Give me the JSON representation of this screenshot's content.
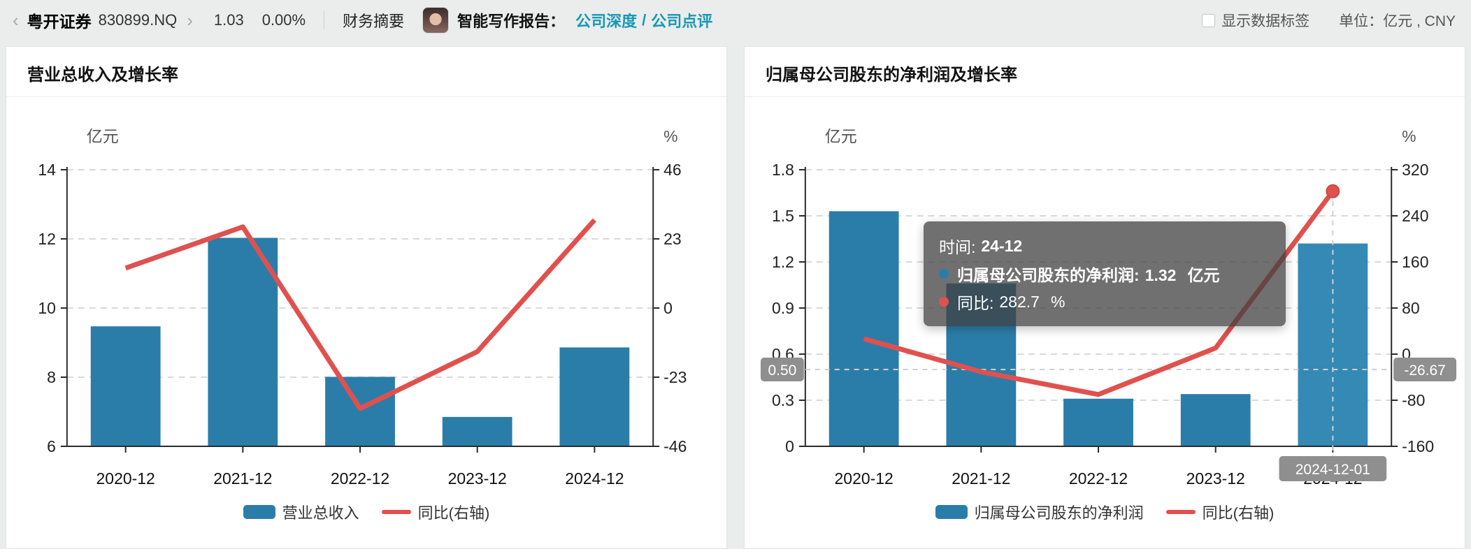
{
  "header": {
    "back_icon": "‹",
    "forward_icon": "›",
    "stock_name": "粤开证券",
    "stock_code": "830899.NQ",
    "price": "1.03",
    "change_percent": "0.00%",
    "tab_financial_summary": "财务摘要",
    "report_label": "智能写作报告：",
    "link_company_deep": "公司深度",
    "link_separator": "/",
    "link_company_comment": "公司点评",
    "show_data_labels": "显示数据标签",
    "unit_label": "单位：",
    "unit_value": "亿元 , CNY"
  },
  "colors": {
    "bar": "#2b7da9",
    "bar_emphasis": "#3489b5",
    "line": "#e0514e",
    "accent": "#1898b4",
    "badge": "#8f8f8f",
    "axis": "#2b2b2b",
    "grid": "#d9d9d9",
    "crosshair": "#d0d0d0",
    "tooltip_bg": "rgba(64,64,64,0.75)"
  },
  "chart_data": [
    {
      "type": "bar+line",
      "title": "营业总收入及增长率",
      "categories": [
        "2020-12",
        "2021-12",
        "2022-12",
        "2023-12",
        "2024-12"
      ],
      "series": [
        {
          "name": "营业总收入",
          "type": "bar",
          "axis": "left",
          "values": [
            9.47,
            12.03,
            8.01,
            6.85,
            8.86
          ]
        },
        {
          "name": "同比(右轴)",
          "type": "line",
          "axis": "right",
          "values": [
            13.3,
            27.0,
            -33.4,
            -14.5,
            29.3
          ]
        }
      ],
      "left_axis": {
        "unit": "亿元",
        "tick_labels": [
          "14",
          "12",
          "10",
          "8",
          "6"
        ],
        "min": 6,
        "max": 14
      },
      "right_axis": {
        "unit": "%",
        "tick_labels": [
          "46",
          "23",
          "0",
          "-23",
          "-46"
        ],
        "min": -46,
        "max": 46
      },
      "grid": true,
      "legend_position": "bottom"
    },
    {
      "type": "bar+line",
      "title": "归属母公司股东的净利润及增长率",
      "categories": [
        "2020-12",
        "2021-12",
        "2022-12",
        "2023-12",
        "2024-12"
      ],
      "series": [
        {
          "name": "归属母公司股东的净利润",
          "type": "bar",
          "axis": "left",
          "values": [
            1.53,
            1.06,
            0.31,
            0.34,
            1.32
          ]
        },
        {
          "name": "同比(右轴)",
          "type": "line",
          "axis": "right",
          "values": [
            26.7,
            -30.7,
            -70.1,
            10.6,
            282.7
          ]
        }
      ],
      "left_axis": {
        "unit": "亿元",
        "tick_labels": [
          "1.8",
          "1.5",
          "1.2",
          "0.9",
          "0.6",
          "0.3",
          "0"
        ],
        "min": 0,
        "max": 1.8
      },
      "right_axis": {
        "unit": "%",
        "tick_labels": [
          "320",
          "240",
          "160",
          "80",
          "0",
          "-80",
          "-160"
        ],
        "min": -160,
        "max": 320
      },
      "grid": true,
      "legend_position": "bottom",
      "emphasis_index": 4,
      "highlight_point": {
        "category_index": 4,
        "value": 282.7
      },
      "crosshair": {
        "category_index": 4,
        "x_badge": "2024-12-01",
        "left_badge": "0.50",
        "right_badge": "-26.67",
        "left_value": 0.5,
        "right_value": -26.67
      },
      "tooltip": {
        "time_label": "时间:",
        "time_value": "24-12",
        "series1_label": "归属母公司股东的净利润:",
        "series1_value": "1.32",
        "series1_unit": "亿元",
        "series2_label": "同比:",
        "series2_value": "282.7",
        "series2_unit": "%"
      }
    }
  ]
}
